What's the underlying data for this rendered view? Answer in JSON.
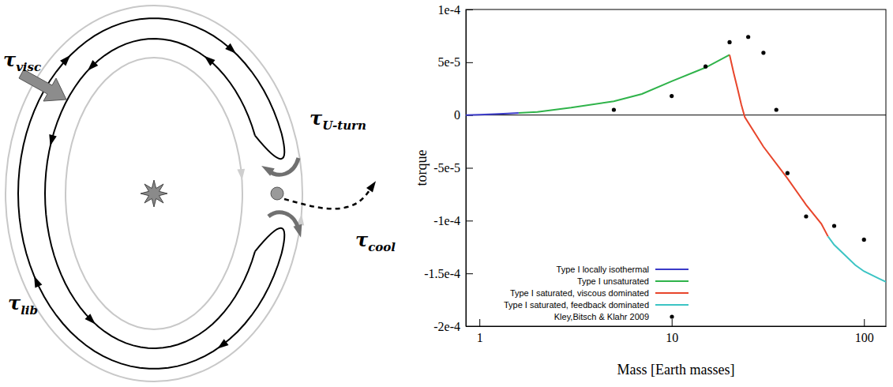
{
  "chart_data": {
    "type": "line",
    "xlabel": "Mass [Earth masses]",
    "ylabel": "torque",
    "log": "x",
    "grid": false,
    "legend": "lower left",
    "xlim": [
      0.85,
      130
    ],
    "xticks": [
      1,
      10,
      100
    ],
    "ylim": [
      -0.0002,
      0.0001
    ],
    "yticks": [
      {
        "value": 0.0001,
        "label": "1e-4"
      },
      {
        "value": 5e-05,
        "label": "5e-5"
      },
      0,
      {
        "value": -5e-05,
        "label": "-5e-5"
      },
      {
        "value": -0.0001,
        "label": "-1e-4"
      },
      {
        "value": -0.00015,
        "label": "-1.5e-4"
      },
      {
        "value": -0.0002,
        "label": "-2e-4"
      }
    ],
    "series": [
      {
        "name": "Type I locally isothermal",
        "color": "#3a3ac8",
        "line_style": "solid",
        "x": [
          0.85,
          1,
          1.2,
          1.4,
          1.6
        ],
        "values": [
          0,
          3e-07,
          8e-07,
          1.4e-06,
          2e-06
        ]
      },
      {
        "name": "Type I unsaturated",
        "color": "#2fb34a",
        "line_style": "solid",
        "x": [
          1.6,
          2,
          3,
          5,
          7,
          10,
          15,
          20
        ],
        "values": [
          2e-06,
          3e-06,
          7e-06,
          1.3e-05,
          2e-05,
          3.2e-05,
          4.5e-05,
          5.7e-05
        ]
      },
      {
        "name": "Type I saturated, viscous dominated",
        "color": "#e8452b",
        "line_style": "solid",
        "x": [
          20,
          21,
          22,
          23,
          24,
          30,
          40,
          50,
          60,
          65
        ],
        "values": [
          5.7e-05,
          4e-05,
          2.5e-05,
          1e-05,
          -2e-06,
          -3e-05,
          -6e-05,
          -8.5e-05,
          -0.000103,
          -0.000115
        ]
      },
      {
        "name": "Type I saturated, feedback dominated",
        "color": "#3cc4c4",
        "line_style": "solid",
        "x": [
          65,
          70,
          80,
          90,
          100,
          120,
          130
        ],
        "values": [
          -0.000115,
          -0.000123,
          -0.000133,
          -0.000142,
          -0.000148,
          -0.000155,
          -0.000158
        ]
      },
      {
        "name": "Kley,Bitsch & Klahr 2009",
        "color": "#000000",
        "type": "scatter",
        "marker": "circle",
        "x": [
          5,
          10,
          15,
          20,
          25,
          30,
          35,
          40,
          50,
          70,
          100
        ],
        "values": [
          5e-06,
          1.8e-05,
          4.6e-05,
          6.9e-05,
          7.4e-05,
          5.9e-05,
          5e-06,
          -5.5e-05,
          -9.6e-05,
          -0.000105,
          -0.000118
        ]
      }
    ]
  },
  "diagram": {
    "labels": [
      {
        "symbol": "τ",
        "subscript": "visc"
      },
      {
        "symbol": "τ",
        "subscript": "U-turn"
      },
      {
        "symbol": "τ",
        "subscript": "cool"
      },
      {
        "symbol": "τ",
        "subscript": "lib"
      }
    ]
  }
}
